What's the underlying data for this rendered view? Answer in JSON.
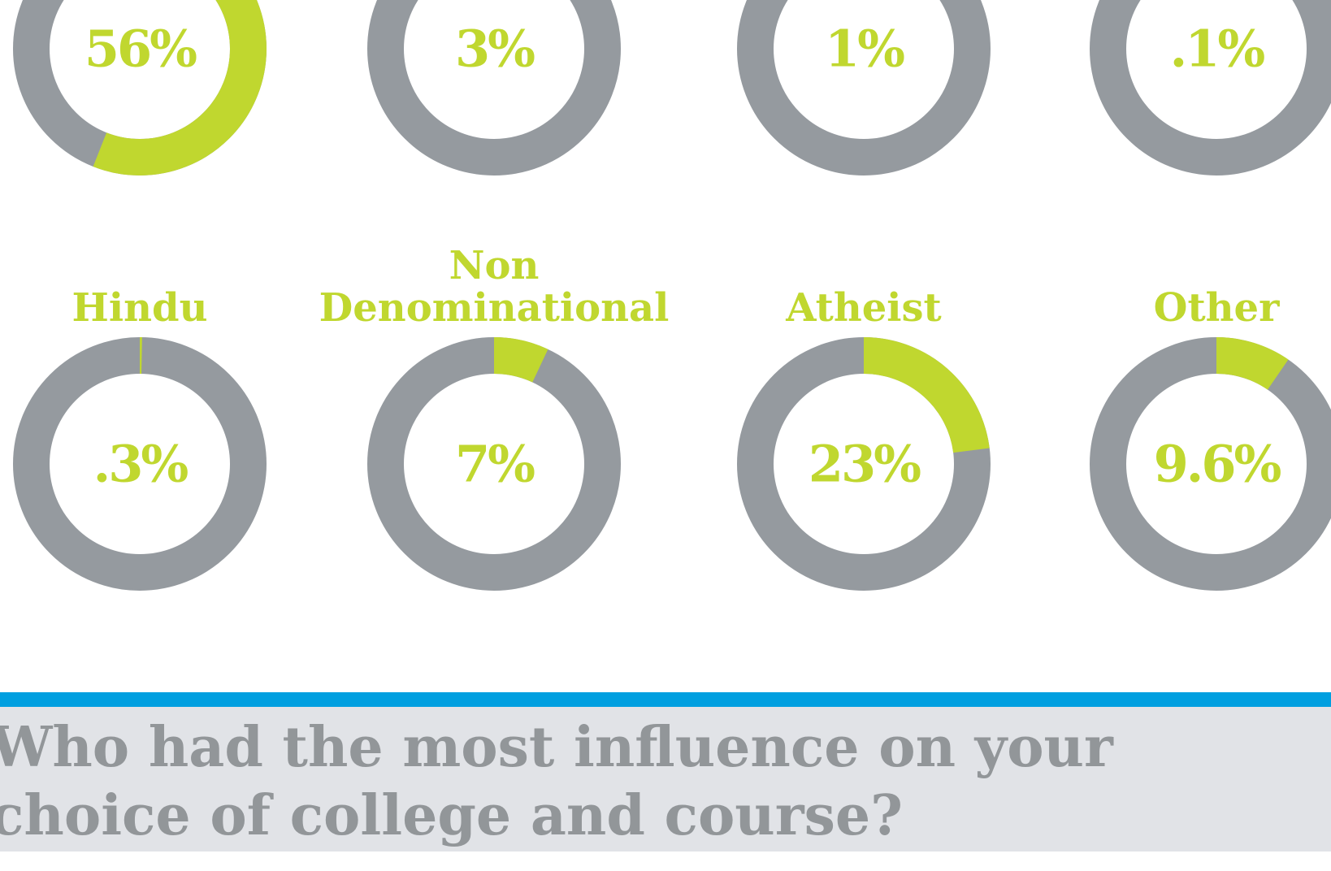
{
  "chart_data": [
    {
      "type": "pie",
      "values": [
        56
      ],
      "value_labels": [
        "56%"
      ],
      "color": "#c0d72f",
      "rest_color": "#959a9f"
    },
    {
      "type": "pie",
      "values": [
        3
      ],
      "value_labels": [
        "3%"
      ],
      "color": "#c0d72f",
      "rest_color": "#959a9f"
    },
    {
      "type": "pie",
      "values": [
        1
      ],
      "value_labels": [
        "1%"
      ],
      "color": "#c0d72f",
      "rest_color": "#959a9f"
    },
    {
      "type": "pie",
      "values": [
        0.1
      ],
      "value_labels": [
        ".1%"
      ],
      "color": "#c0d72f",
      "rest_color": "#959a9f"
    },
    {
      "type": "pie",
      "title": "Hindu",
      "values": [
        0.3
      ],
      "value_labels": [
        ".3%"
      ],
      "color": "#c0d72f",
      "rest_color": "#959a9f"
    },
    {
      "type": "pie",
      "title": "Non Denominational",
      "values": [
        7
      ],
      "value_labels": [
        "7%"
      ],
      "color": "#c0d72f",
      "rest_color": "#959a9f"
    },
    {
      "type": "pie",
      "title": "Atheist",
      "values": [
        23
      ],
      "value_labels": [
        "23%"
      ],
      "color": "#c0d72f",
      "rest_color": "#959a9f"
    },
    {
      "type": "pie",
      "title": "Other",
      "values": [
        9.6
      ],
      "value_labels": [
        "9.6%"
      ],
      "color": "#c0d72f",
      "rest_color": "#959a9f"
    }
  ],
  "section": {
    "heading": "Who had the most influence on your choice of college and course?"
  }
}
